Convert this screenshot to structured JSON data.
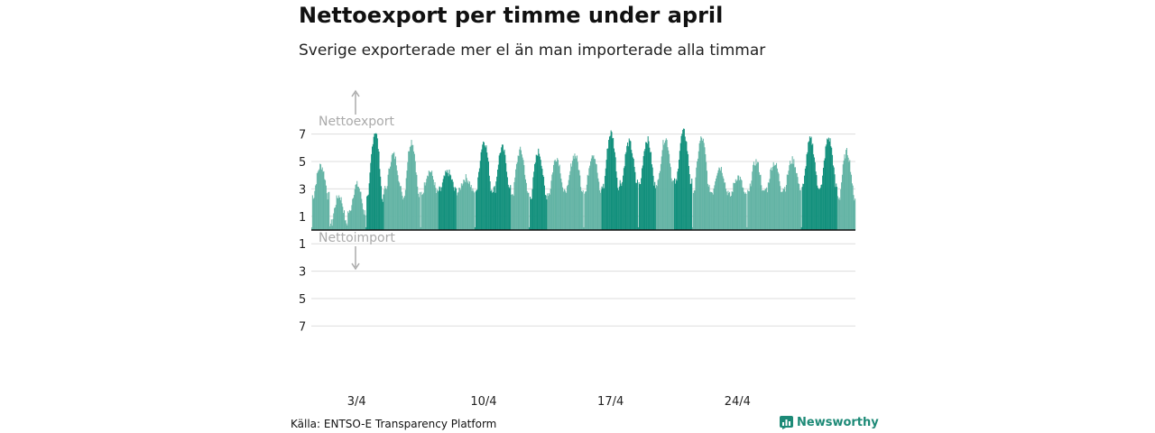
{
  "header": {
    "title": "Nettoexport per timme under april",
    "subtitle": "Sverige exporterade mer el än man importerade alla timmar"
  },
  "footer": {
    "source": "Källa: ENTSO-E Transparency Platform",
    "brand": "Newsworthy"
  },
  "colors": {
    "bar_dark": "#12907c",
    "bar_light": "#62b3a4",
    "grid": "#dddddd",
    "zero_line": "#111111",
    "annotation": "#aaaaaa",
    "brand": "#1d8a77"
  },
  "icons": {
    "brand_logo": "bar-chart-icon"
  },
  "chart_data": {
    "type": "bar",
    "y_ticks_positive": [
      "7",
      "5",
      "3",
      "1"
    ],
    "y_ticks_negative": [
      "1",
      "3",
      "5",
      "7"
    ],
    "export_label": "Nettoexport",
    "import_label": "Nettoimport",
    "x_ticks": [
      {
        "label": "3/4",
        "day": 3
      },
      {
        "label": "10/4",
        "day": 10
      },
      {
        "label": "17/4",
        "day": 17
      },
      {
        "label": "24/4",
        "day": 24
      }
    ],
    "ylim": [
      -7.5,
      7.5
    ],
    "grid": true,
    "days": 30,
    "hours_per_day": 24,
    "daily_shading": [
      "light",
      "light",
      "light",
      "dark",
      "light",
      "light",
      "light",
      "dark",
      "light",
      "dark",
      "dark",
      "light",
      "dark",
      "light",
      "light",
      "light",
      "dark",
      "dark",
      "dark",
      "light",
      "dark",
      "light",
      "light",
      "light",
      "light",
      "light",
      "light",
      "dark",
      "dark",
      "light"
    ],
    "daily_profile": [
      {
        "day": 1,
        "min": 2.5,
        "max": 4.7
      },
      {
        "day": 2,
        "min": 0.5,
        "max": 2.5
      },
      {
        "day": 3,
        "min": 1.3,
        "max": 3.3
      },
      {
        "day": 4,
        "min": 2.3,
        "max": 7.2
      },
      {
        "day": 5,
        "min": 3.0,
        "max": 5.5
      },
      {
        "day": 6,
        "min": 2.5,
        "max": 6.5
      },
      {
        "day": 7,
        "min": 2.7,
        "max": 4.3
      },
      {
        "day": 8,
        "min": 2.9,
        "max": 4.2
      },
      {
        "day": 9,
        "min": 2.8,
        "max": 3.8
      },
      {
        "day": 10,
        "min": 3.0,
        "max": 6.5
      },
      {
        "day": 11,
        "min": 3.0,
        "max": 6.0
      },
      {
        "day": 12,
        "min": 2.7,
        "max": 5.8
      },
      {
        "day": 13,
        "min": 2.5,
        "max": 5.7
      },
      {
        "day": 14,
        "min": 2.7,
        "max": 5.3
      },
      {
        "day": 15,
        "min": 3.0,
        "max": 5.5
      },
      {
        "day": 16,
        "min": 2.8,
        "max": 5.6
      },
      {
        "day": 17,
        "min": 3.2,
        "max": 7.1
      },
      {
        "day": 18,
        "min": 3.5,
        "max": 6.4
      },
      {
        "day": 19,
        "min": 3.3,
        "max": 6.6
      },
      {
        "day": 20,
        "min": 3.5,
        "max": 6.7
      },
      {
        "day": 21,
        "min": 3.5,
        "max": 7.2
      },
      {
        "day": 22,
        "min": 3.0,
        "max": 6.7
      },
      {
        "day": 23,
        "min": 2.8,
        "max": 4.6
      },
      {
        "day": 24,
        "min": 2.5,
        "max": 3.9
      },
      {
        "day": 25,
        "min": 2.7,
        "max": 5.0
      },
      {
        "day": 26,
        "min": 3.0,
        "max": 4.9
      },
      {
        "day": 27,
        "min": 3.1,
        "max": 5.1
      },
      {
        "day": 28,
        "min": 3.2,
        "max": 6.6
      },
      {
        "day": 29,
        "min": 3.2,
        "max": 6.7
      },
      {
        "day": 30,
        "min": 2.4,
        "max": 5.7
      }
    ]
  }
}
